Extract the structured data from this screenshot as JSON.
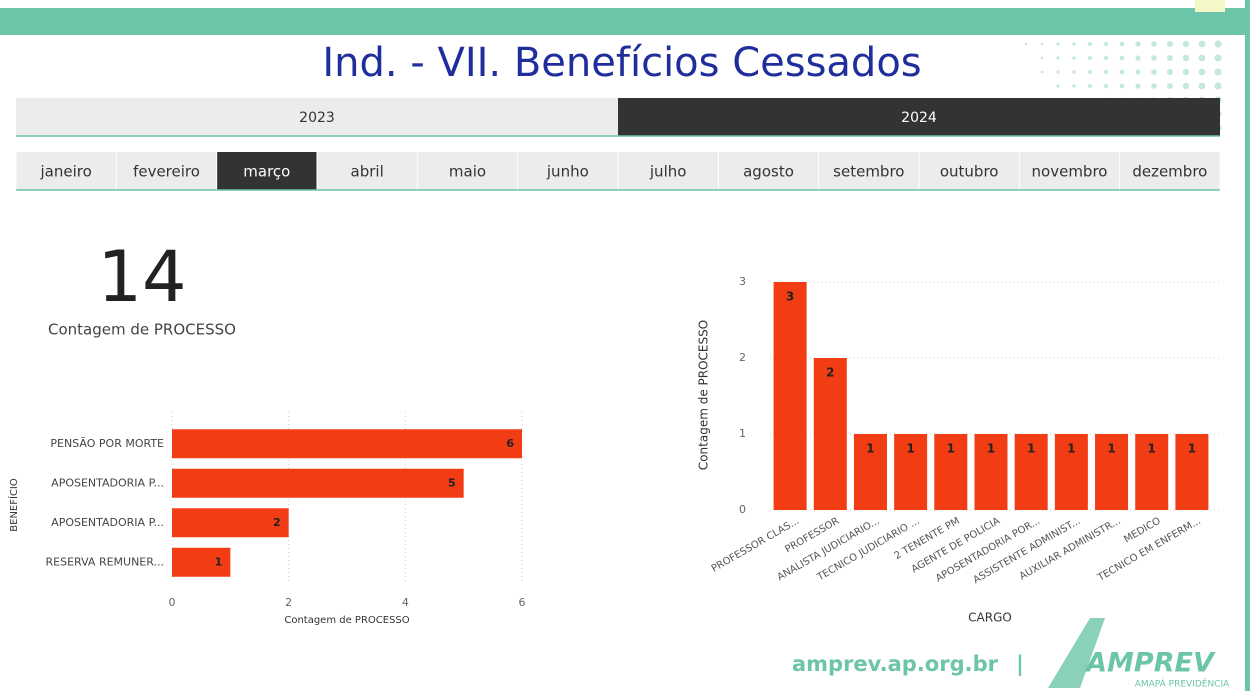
{
  "title": "Ind. - VII. Benefícios Cessados",
  "years": [
    {
      "label": "2023",
      "selected": false
    },
    {
      "label": "2024",
      "selected": true
    }
  ],
  "months": [
    {
      "label": "janeiro",
      "selected": false
    },
    {
      "label": "fevereiro",
      "selected": false
    },
    {
      "label": "março",
      "selected": true
    },
    {
      "label": "abril",
      "selected": false
    },
    {
      "label": "maio",
      "selected": false
    },
    {
      "label": "junho",
      "selected": false
    },
    {
      "label": "julho",
      "selected": false
    },
    {
      "label": "agosto",
      "selected": false
    },
    {
      "label": "setembro",
      "selected": false
    },
    {
      "label": "outubro",
      "selected": false
    },
    {
      "label": "novembro",
      "selected": false
    },
    {
      "label": "dezembro",
      "selected": false
    }
  ],
  "kpi": {
    "value": 14,
    "label": "Contagem de PROCESSO"
  },
  "chart_data": [
    {
      "type": "bar",
      "orientation": "horizontal",
      "y_label": "BENEFÍCIO",
      "x_label": "Contagem de PROCESSO",
      "categories": [
        "PENSÃO POR MORTE",
        "APOSENTADORIA P...",
        "APOSENTADORIA P...",
        "RESERVA REMUNER..."
      ],
      "values": [
        6,
        5,
        2,
        1
      ],
      "color": "#f23c14",
      "xlim": [
        0,
        6
      ],
      "xticks": [
        0,
        2,
        4,
        6
      ],
      "grid": true
    },
    {
      "type": "bar",
      "orientation": "vertical",
      "y_label": "Contagem de PROCESSO",
      "x_label": "CARGO",
      "categories": [
        "PROFESSOR CLAS...",
        "PROFESSOR",
        "ANALISTA JUDICIARIO...",
        "TECNICO JUDICIARIO ...",
        "2 TENENTE PM",
        "AGENTE DE POLICIA",
        "APOSENTADORIA POR...",
        "ASSISTENTE ADMINIST...",
        "AUXILIAR ADMINISTR...",
        "MEDICO",
        "TECNICO EM ENFERM..."
      ],
      "values": [
        3,
        2,
        1,
        1,
        1,
        1,
        1,
        1,
        1,
        1,
        1
      ],
      "color": "#f23c14",
      "ylim": [
        0,
        3
      ],
      "yticks": [
        0,
        1,
        2,
        3
      ],
      "grid": true
    }
  ],
  "footer": {
    "url": "amprev.ap.org.br",
    "separator": "|",
    "logo": "AMPREV",
    "logo_sub": "AMAPÁ PREVIDÊNCIA"
  }
}
